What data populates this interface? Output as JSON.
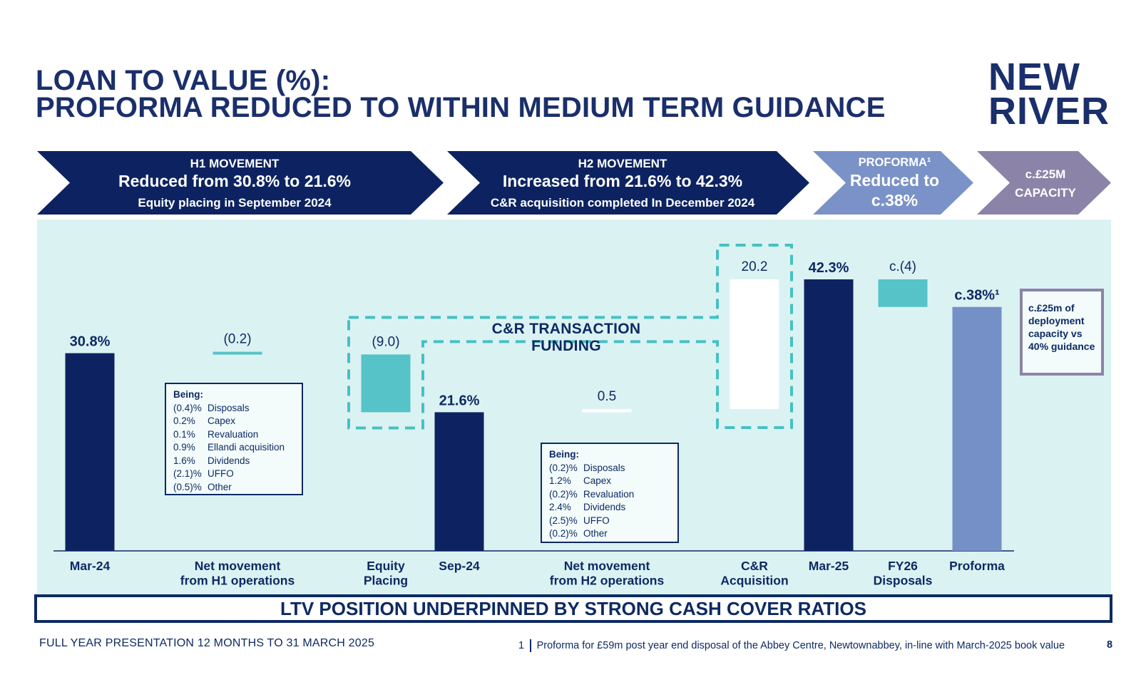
{
  "title": {
    "line1": "LOAN TO VALUE (%):",
    "line2": "PROFORMA REDUCED TO WITHIN MEDIUM TERM GUIDANCE"
  },
  "logo": {
    "line1": "NEW",
    "line2": "RIVER"
  },
  "chevrons": [
    {
      "heading": "H1 MOVEMENT",
      "main": "Reduced from 30.8% to 21.6%",
      "sub": "Equity placing in September 2024",
      "color": "#0d2361"
    },
    {
      "heading": "H2 MOVEMENT",
      "main": "Increased from 21.6% to 42.3%",
      "sub": "C&R acquisition completed In December 2024",
      "color": "#0d2361"
    },
    {
      "heading": "PROFORMA¹",
      "main": "Reduced to",
      "sub": "c.38%",
      "color": "#7a92c7"
    },
    {
      "heading": "c.£25M",
      "main": "CAPACITY",
      "color": "#8b84a8"
    }
  ],
  "chart_data": {
    "type": "bar",
    "subtype": "waterfall",
    "unit": "%",
    "categories": [
      "Mar-24",
      "Net movement from H1 operations",
      "Equity Placing",
      "Sep-24",
      "Net movement from H2 operations",
      "C&R Acquisition",
      "Mar-25",
      "FY26 Disposals",
      "Proforma"
    ],
    "tick_labels": [
      [
        "Mar-24"
      ],
      [
        "Net movement",
        "from H1 operations"
      ],
      [
        "Equity",
        "Placing"
      ],
      [
        "Sep-24"
      ],
      [
        "Net movement",
        "from H2 operations"
      ],
      [
        "C&R",
        "Acquisition"
      ],
      [
        "Mar-25"
      ],
      [
        "FY26",
        "Disposals"
      ],
      [
        "Proforma"
      ]
    ],
    "bars": [
      {
        "kind": "total",
        "start": 0,
        "end": 30.8,
        "label": "30.8%"
      },
      {
        "kind": "change",
        "start": 30.8,
        "end": 30.6,
        "label": "(0.2)"
      },
      {
        "kind": "change",
        "start": 30.6,
        "end": 21.6,
        "label": "(9.0)"
      },
      {
        "kind": "total",
        "start": 0,
        "end": 21.6,
        "label": "21.6%"
      },
      {
        "kind": "change",
        "start": 21.6,
        "end": 22.1,
        "label": "0.5"
      },
      {
        "kind": "change",
        "start": 22.1,
        "end": 42.3,
        "label": "20.2"
      },
      {
        "kind": "total",
        "start": 0,
        "end": 42.3,
        "label": "42.3%"
      },
      {
        "kind": "change",
        "start": 42.3,
        "end": 38.0,
        "label": "c.(4)"
      },
      {
        "kind": "total",
        "start": 0,
        "end": 38.0,
        "label": "c.38%¹"
      }
    ],
    "ylim": [
      0,
      42.3
    ],
    "grid": false,
    "colors": {
      "total": "#0d2361",
      "decrease": "#56c3c8",
      "increase": "#ffffff",
      "proforma": "#7590c7",
      "funding_outline": "#45c1c3"
    }
  },
  "funding_label": "C&R TRANSACTION FUNDING",
  "notes": {
    "h1": {
      "heading": "Being:",
      "rows": [
        {
          "value": "(0.4)%",
          "label": "Disposals"
        },
        {
          "value": "0.2%",
          "label": "Capex"
        },
        {
          "value": "0.1%",
          "label": "Revaluation"
        },
        {
          "value": "0.9%",
          "label": "Ellandi acquisition"
        },
        {
          "value": "1.6%",
          "label": "Dividends"
        },
        {
          "value": "(2.1)%",
          "label": "UFFO"
        },
        {
          "value": "(0.5)%",
          "label": "Other"
        }
      ]
    },
    "h2": {
      "heading": "Being:",
      "rows": [
        {
          "value": "(0.2)%",
          "label": "Disposals"
        },
        {
          "value": "1.2%",
          "label": "Capex"
        },
        {
          "value": "(0.2)%",
          "label": "Revaluation"
        },
        {
          "value": "2.4%",
          "label": "Dividends"
        },
        {
          "value": "(2.5)%",
          "label": "UFFO"
        },
        {
          "value": "(0.2)%",
          "label": "Other"
        }
      ]
    },
    "capacity": "c.£25m of deployment capacity vs 40% guidance"
  },
  "banner": "LTV POSITION UNDERPINNED BY STRONG CASH COVER RATIOS",
  "footer": {
    "left": "FULL YEAR PRESENTATION 12 MONTHS TO 31 MARCH 2025",
    "footnote_number": "1",
    "footnote": "Proforma for £59m post year end disposal of the Abbey Centre, Newtownabbey, in-line with March-2025 book value",
    "page": "8"
  }
}
